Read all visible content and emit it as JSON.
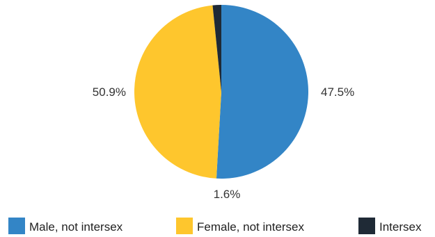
{
  "chart_data": {
    "type": "pie",
    "title": "",
    "slices": [
      {
        "label": "Male, not intersex",
        "value": 50.9,
        "display": "50.9%",
        "color": "#3385c6"
      },
      {
        "label": "Female, not intersex",
        "value": 47.5,
        "display": "47.5%",
        "color": "#fec62d"
      },
      {
        "label": "Intersex",
        "value": 1.6,
        "display": "1.6%",
        "color": "#1f2a36"
      }
    ],
    "start_angle_deg": 0,
    "direction": "clockwise",
    "legend_placement": "bottom"
  }
}
